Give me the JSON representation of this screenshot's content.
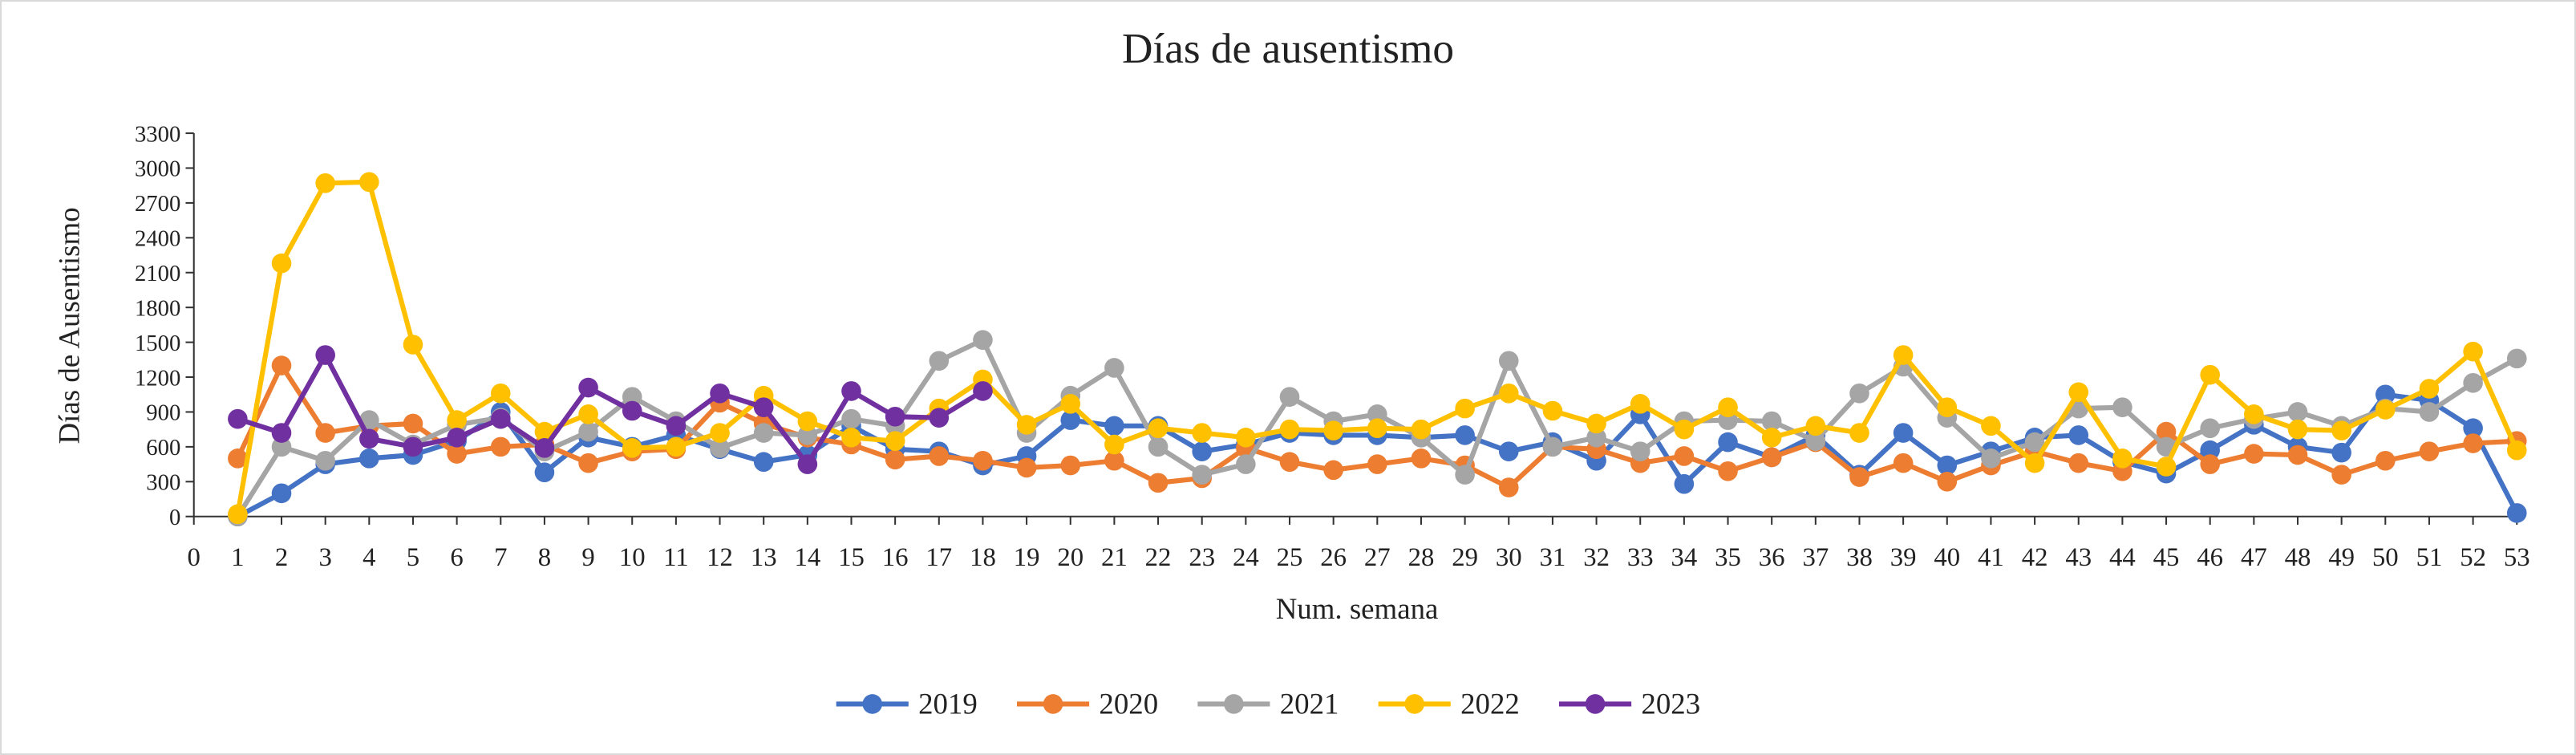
{
  "chart_data": {
    "type": "line",
    "title": "Días de ausentismo",
    "xlabel": "Num. semana",
    "ylabel": "Días de Ausentismo",
    "x": [
      1,
      2,
      3,
      4,
      5,
      6,
      7,
      8,
      9,
      10,
      11,
      12,
      13,
      14,
      15,
      16,
      17,
      18,
      19,
      20,
      21,
      22,
      23,
      24,
      25,
      26,
      27,
      28,
      29,
      30,
      31,
      32,
      33,
      34,
      35,
      36,
      37,
      38,
      39,
      40,
      41,
      42,
      43,
      44,
      45,
      46,
      47,
      48,
      49,
      50,
      51,
      52,
      53
    ],
    "xlim": [
      0,
      53
    ],
    "xticks": [
      0,
      1,
      2,
      3,
      4,
      5,
      6,
      7,
      8,
      9,
      10,
      11,
      12,
      13,
      14,
      15,
      16,
      17,
      18,
      19,
      20,
      21,
      22,
      23,
      24,
      25,
      26,
      27,
      28,
      29,
      30,
      31,
      32,
      33,
      34,
      35,
      36,
      37,
      38,
      39,
      40,
      41,
      42,
      43,
      44,
      45,
      46,
      47,
      48,
      49,
      50,
      51,
      52,
      53
    ],
    "ylim": [
      0,
      3300
    ],
    "yticks": [
      0,
      300,
      600,
      900,
      1200,
      1500,
      1800,
      2100,
      2400,
      2700,
      3000,
      3300
    ],
    "legend": "bottom",
    "series": [
      {
        "name": "2019",
        "color": "#4472c4",
        "values": [
          0,
          200,
          450,
          500,
          530,
          650,
          900,
          380,
          680,
          600,
          700,
          580,
          470,
          530,
          780,
          580,
          560,
          440,
          520,
          830,
          780,
          780,
          560,
          620,
          720,
          700,
          700,
          680,
          700,
          560,
          640,
          480,
          880,
          280,
          640,
          510,
          700,
          360,
          720,
          440,
          560,
          680,
          700,
          470,
          370,
          570,
          790,
          600,
          550,
          1050,
          1000,
          760,
          30
        ]
      },
      {
        "name": "2020",
        "color": "#ed7d31",
        "values": [
          500,
          1300,
          720,
          780,
          800,
          540,
          600,
          620,
          460,
          560,
          580,
          980,
          800,
          680,
          620,
          490,
          520,
          480,
          420,
          440,
          480,
          290,
          330,
          590,
          470,
          400,
          450,
          500,
          440,
          250,
          600,
          580,
          460,
          520,
          390,
          510,
          640,
          340,
          460,
          300,
          440,
          560,
          460,
          390,
          730,
          450,
          540,
          530,
          360,
          480,
          560,
          630,
          650
        ]
      },
      {
        "name": "2021",
        "color": "#a5a5a5",
        "values": [
          0,
          600,
          480,
          830,
          620,
          790,
          850,
          560,
          730,
          1030,
          820,
          590,
          720,
          700,
          840,
          780,
          1340,
          1520,
          720,
          1040,
          1280,
          600,
          360,
          450,
          1030,
          820,
          880,
          680,
          360,
          1340,
          600,
          680,
          560,
          820,
          830,
          820,
          650,
          1060,
          1290,
          850,
          500,
          640,
          930,
          940,
          600,
          760,
          840,
          900,
          780,
          930,
          900,
          1150,
          1360
        ]
      },
      {
        "name": "2022",
        "color": "#ffc000",
        "values": [
          20,
          2180,
          2870,
          2880,
          1480,
          830,
          1060,
          730,
          880,
          590,
          600,
          720,
          1040,
          820,
          680,
          650,
          930,
          1180,
          790,
          970,
          620,
          760,
          720,
          680,
          750,
          740,
          760,
          750,
          930,
          1060,
          910,
          800,
          970,
          750,
          940,
          680,
          780,
          720,
          1390,
          940,
          780,
          460,
          1070,
          500,
          430,
          1220,
          880,
          750,
          740,
          920,
          1100,
          1420,
          570
        ]
      },
      {
        "name": "2023",
        "color": "#7030a0",
        "values": [
          840,
          720,
          1390,
          670,
          600,
          680,
          840,
          590,
          1110,
          910,
          780,
          1060,
          940,
          450,
          1080,
          860,
          850,
          1080,
          null,
          null,
          null,
          null,
          null,
          null,
          null,
          null,
          null,
          null,
          null,
          null,
          null,
          null,
          null,
          null,
          null,
          null,
          null,
          null,
          null,
          null,
          null,
          null,
          null,
          null,
          null,
          null,
          null,
          null,
          null,
          null,
          null,
          null,
          null
        ]
      }
    ]
  }
}
